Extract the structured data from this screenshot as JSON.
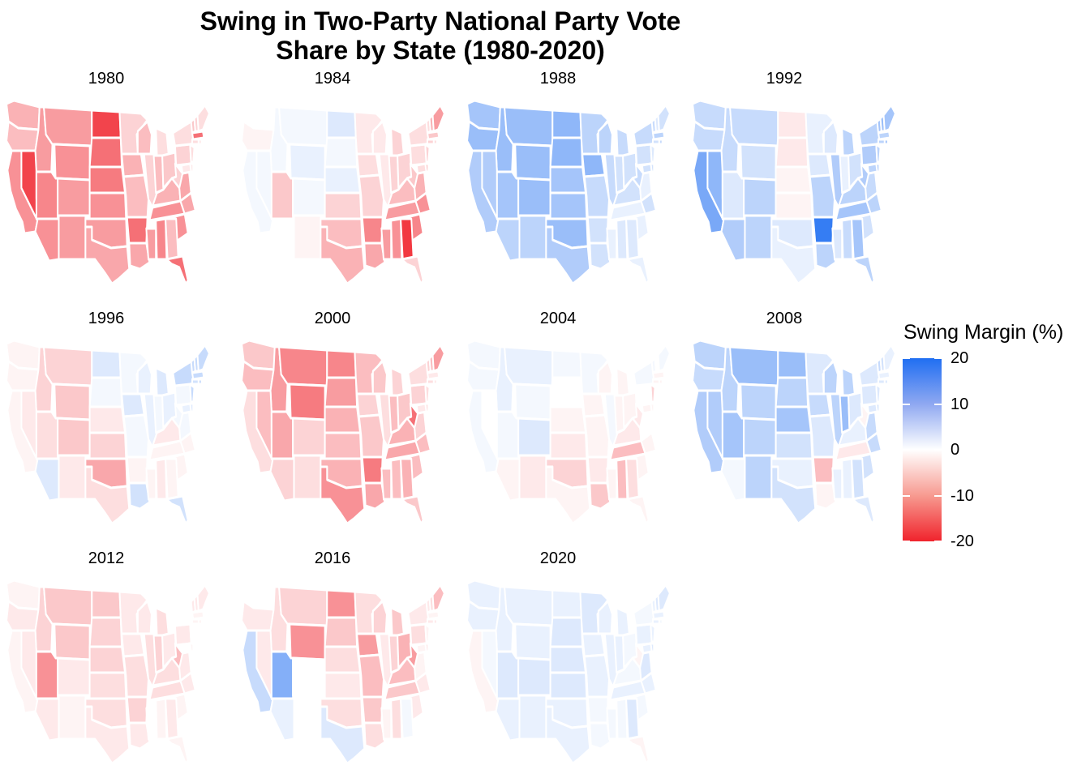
{
  "chart_data": {
    "type": "choropleth-small-multiples",
    "title": "Swing in Two-Party National Party Vote Share by State (1980-2020)",
    "title_lines": [
      "Swing in Two-Party National Party Vote",
      "Share by State (1980-2020)"
    ],
    "legend": {
      "title": "Swing Margin (%)",
      "ticks": [
        "20",
        "10",
        "0",
        "-10",
        "-20"
      ],
      "tick_values": [
        20,
        10,
        0,
        -10,
        -20
      ],
      "range": [
        -20,
        20
      ],
      "position": "right",
      "colors": {
        "high": "#1f6ef2",
        "mid": "#ffffff",
        "low": "#f0232c"
      }
    },
    "states": [
      "WA",
      "OR",
      "CA",
      "ID",
      "NV",
      "MT",
      "WY",
      "UT",
      "AZ",
      "CO",
      "NM",
      "ND",
      "SD",
      "NE",
      "KS",
      "OK",
      "TX",
      "MN",
      "IA",
      "MO",
      "AR",
      "LA",
      "WI",
      "IL",
      "MS",
      "MI",
      "IN",
      "KY",
      "TN",
      "AL",
      "OH",
      "WV",
      "VA",
      "NC",
      "SC",
      "GA",
      "FL",
      "PA",
      "NY",
      "VT",
      "NH",
      "ME",
      "MA",
      "CT",
      "RI",
      "NJ",
      "DE",
      "MD"
    ],
    "panels": [
      {
        "year": "1980",
        "swing": {
          "WA": -7,
          "OR": -6,
          "CA": -10,
          "ID": -9,
          "NV": -17,
          "MT": -9,
          "WY": -10,
          "UT": -11,
          "AZ": -10,
          "CO": -9,
          "NM": -9,
          "ND": -17,
          "SD": -13,
          "NE": -12,
          "KS": -10,
          "OK": -9,
          "TX": -8,
          "MN": -4,
          "IA": -7,
          "MO": -6,
          "AR": -13,
          "LA": -8,
          "WI": -6,
          "IL": -4,
          "MS": -9,
          "MI": -3,
          "IN": -6,
          "KY": -7,
          "TN": -10,
          "AL": -11,
          "OH": -5,
          "WV": -4,
          "VA": -8,
          "NC": -8,
          "SC": -10,
          "GA": -6,
          "FL": -13,
          "PA": -4,
          "NY": -3,
          "VT": -5,
          "NH": -4,
          "ME": -3,
          "MA": -13,
          "CT": -3,
          "RI": -2,
          "NJ": -3,
          "DE": -2,
          "MD": -2
        }
      },
      {
        "year": "1984",
        "swing": {
          "WA": 0,
          "OR": -1,
          "CA": 1,
          "ID": 1,
          "NV": 1,
          "MT": 1,
          "WY": 2,
          "UT": -5,
          "AZ": 0,
          "CO": 1,
          "NM": -1,
          "ND": 3,
          "SD": 1,
          "NE": 2,
          "KS": -4,
          "OK": -6,
          "TX": -7,
          "MN": -2,
          "IA": -3,
          "MO": -4,
          "AR": -11,
          "LA": -8,
          "WI": -2,
          "IL": -2,
          "MS": -9,
          "MI": -4,
          "IN": -4,
          "KY": -6,
          "TN": -9,
          "AL": -10,
          "OH": -4,
          "WV": -5,
          "VA": -7,
          "NC": -10,
          "SC": -11,
          "GA": -18,
          "FL": -4,
          "PA": -3,
          "NY": -3,
          "VT": -3,
          "NH": -7,
          "ME": -9,
          "MA": -5,
          "CT": -4,
          "RI": -3,
          "NJ": -4,
          "DE": -5,
          "MD": -3
        }
      },
      {
        "year": "1988",
        "swing": {
          "WA": 8,
          "OR": 9,
          "CA": 7,
          "ID": 9,
          "NV": 7,
          "MT": 9,
          "WY": 9,
          "UT": 8,
          "AZ": 6,
          "CO": 9,
          "NM": 6,
          "ND": 10,
          "SD": 10,
          "NE": 8,
          "KS": 8,
          "OK": 9,
          "TX": 7,
          "MN": 6,
          "IA": 10,
          "MO": 5,
          "AR": 4,
          "LA": 4,
          "WI": 6,
          "IL": 5,
          "MS": 2,
          "MI": 5,
          "IN": 4,
          "KY": 4,
          "TN": 2,
          "AL": 3,
          "OH": 4,
          "WV": 5,
          "VA": 2,
          "NC": 4,
          "SC": 2,
          "GA": 3,
          "FL": 2,
          "PA": 4,
          "NY": 5,
          "VT": 5,
          "NH": 3,
          "ME": 4,
          "MA": 6,
          "CT": 4,
          "RI": 5,
          "NJ": 3,
          "DE": 4,
          "MD": 4
        }
      },
      {
        "year": "1992",
        "swing": {
          "WA": 5,
          "OR": 5,
          "CA": 12,
          "ID": 5,
          "NV": 10,
          "MT": 5,
          "WY": 4,
          "UT": 3,
          "AZ": 7,
          "CO": 6,
          "NM": 6,
          "ND": -2,
          "SD": -2,
          "NE": -1,
          "KS": -1,
          "OK": 3,
          "TX": 2,
          "MN": 2,
          "IA": 3,
          "MO": 6,
          "AR": 18,
          "LA": 6,
          "WI": 3,
          "IL": 7,
          "MS": 3,
          "MI": 6,
          "IN": 2,
          "KY": 6,
          "TN": 8,
          "AL": 5,
          "OH": 4,
          "WV": 7,
          "VA": 5,
          "NC": 6,
          "SC": 4,
          "GA": 8,
          "FL": 6,
          "PA": 7,
          "NY": 6,
          "VT": 8,
          "NH": 9,
          "ME": 8,
          "MA": 6,
          "CT": 6,
          "RI": 8,
          "NJ": 6,
          "DE": 7,
          "MD": 6
        }
      },
      {
        "year": "1996",
        "swing": {
          "WA": -1,
          "OR": -1,
          "CA": -1,
          "ID": -4,
          "NV": -2,
          "MT": -4,
          "WY": -5,
          "UT": -3,
          "AZ": 3,
          "CO": -5,
          "NM": -2,
          "ND": 3,
          "SD": 1,
          "NE": -2,
          "KS": -4,
          "OK": -8,
          "TX": -3,
          "MN": 1,
          "IA": 3,
          "MO": 1,
          "AR": -1,
          "LA": 4,
          "WI": 2,
          "IL": 2,
          "MS": -1,
          "MI": 3,
          "IN": 1,
          "KY": -2,
          "TN": -1,
          "AL": -2,
          "OH": 2,
          "WV": 1,
          "VA": 1,
          "NC": -1,
          "SC": -1,
          "GA": -1,
          "FL": 4,
          "PA": 1,
          "NY": 5,
          "VT": 5,
          "NH": 5,
          "ME": 5,
          "MA": 5,
          "CT": 4,
          "RI": 5,
          "NJ": 5,
          "DE": 3,
          "MD": 2
        }
      },
      {
        "year": "2000",
        "swing": {
          "WA": -5,
          "OR": -6,
          "CA": -3,
          "ID": -9,
          "NV": -6,
          "MT": -11,
          "WY": -12,
          "UT": -8,
          "AZ": -4,
          "CO": -4,
          "NM": -3,
          "ND": -11,
          "SD": -9,
          "NE": -7,
          "KS": -6,
          "OK": -7,
          "TX": -10,
          "MN": -6,
          "IA": -4,
          "MO": -5,
          "AR": -12,
          "LA": -8,
          "WI": -5,
          "IL": -3,
          "MS": -6,
          "MI": -4,
          "IN": -6,
          "KY": -7,
          "TN": -8,
          "AL": -6,
          "OH": -5,
          "WV": -13,
          "VA": -4,
          "NC": -6,
          "SC": -6,
          "GA": -7,
          "FL": -5,
          "PA": -4,
          "NY": -3,
          "VT": -4,
          "NH": -6,
          "ME": -9,
          "MA": -2,
          "CT": -3,
          "RI": -2,
          "NJ": -3,
          "DE": -3,
          "MD": -2
        }
      },
      {
        "year": "2004",
        "swing": {
          "WA": 1,
          "OR": 1,
          "CA": 1,
          "ID": 2,
          "NV": 0,
          "MT": 2,
          "WY": 1,
          "UT": 1,
          "AZ": -1,
          "CO": 3,
          "NM": -2,
          "ND": 1,
          "SD": 0,
          "NE": -1,
          "KS": -2,
          "OK": -4,
          "TX": -1,
          "MN": 1,
          "IA": -1,
          "MO": -1,
          "AR": -2,
          "LA": -5,
          "WI": -1,
          "IL": 1,
          "MS": -1,
          "MI": -1,
          "IN": -1,
          "KY": -2,
          "TN": -6,
          "AL": -6,
          "OH": -1,
          "WV": -2,
          "VA": 0,
          "NC": -1,
          "SC": -1,
          "GA": -3,
          "FL": -1,
          "PA": 0,
          "NY": 1,
          "VT": 1,
          "NH": 0,
          "ME": 1,
          "MA": -1,
          "CT": -1,
          "RI": -1,
          "NJ": -4,
          "DE": -1,
          "MD": -1
        }
      },
      {
        "year": "2008",
        "swing": {
          "WA": 6,
          "OR": 5,
          "CA": 7,
          "ID": 6,
          "NV": 7,
          "MT": 9,
          "WY": 6,
          "UT": 8,
          "AZ": 1,
          "CO": 6,
          "NM": 6,
          "ND": 9,
          "SD": 6,
          "NE": 8,
          "KS": 4,
          "OK": 2,
          "TX": 4,
          "MN": 3,
          "IA": 5,
          "MO": 3,
          "AR": -6,
          "LA": -1,
          "WI": 6,
          "IL": 6,
          "MS": 2,
          "MI": 6,
          "IN": 9,
          "KY": 2,
          "TN": -2,
          "AL": 2,
          "OH": 3,
          "WV": -1,
          "VA": 5,
          "NC": 5,
          "SC": 4,
          "GA": 4,
          "FL": 3,
          "PA": 3,
          "NY": 3,
          "VT": 5,
          "NH": 4,
          "ME": 2,
          "MA": 2,
          "CT": 3,
          "RI": 3,
          "NJ": 3,
          "DE": 4,
          "MD": 3
        }
      },
      {
        "year": "2012",
        "swing": {
          "WA": -1,
          "OR": -2,
          "CA": -1,
          "ID": -4,
          "NV": -2,
          "MT": -5,
          "WY": -5,
          "UT": -10,
          "AZ": -2,
          "CO": -2,
          "NM": -1,
          "ND": -5,
          "SD": -4,
          "NE": -4,
          "KS": -3,
          "OK": -3,
          "TX": -2,
          "MN": -2,
          "IA": -2,
          "MO": -3,
          "AR": -4,
          "LA": -2,
          "WI": -2,
          "IL": -3,
          "MS": 0,
          "MI": -3,
          "IN": -4,
          "KY": -3,
          "TN": -3,
          "AL": -1,
          "OH": -2,
          "WV": -6,
          "VA": -2,
          "NC": -2,
          "SC": -1,
          "GA": -2,
          "FL": -1,
          "PA": -2,
          "NY": 0,
          "VT": -2,
          "NH": -2,
          "ME": -2,
          "MA": -1,
          "CT": -1,
          "RI": -1,
          "NJ": 0,
          "DE": -1,
          "MD": 0
        }
      },
      {
        "year": "2016",
        "swing": {
          "WA": 0,
          "OR": -2,
          "CA": 5,
          "ID": -3,
          "NV": -2,
          "MT": -4,
          "WY": -10,
          "UT": 11,
          "AZ": 2,
          "CO": 0,
          "NM": 0,
          "ND": -10,
          "SD": -5,
          "NE": -3,
          "KS": -2,
          "OK": -3,
          "TX": 3,
          "MN": -3,
          "IA": -9,
          "MO": -6,
          "AR": -5,
          "LA": -3,
          "WI": -4,
          "IL": -2,
          "MS": -1,
          "MI": -5,
          "IN": -4,
          "KY": -6,
          "TN": -5,
          "AL": -3,
          "OH": -7,
          "WV": -9,
          "VA": -1,
          "NC": -2,
          "SC": -2,
          "GA": 1,
          "FL": 0,
          "PA": -3,
          "NY": -2,
          "VT": -2,
          "NH": -3,
          "ME": -6,
          "MA": -1,
          "CT": -2,
          "RI": -2,
          "NJ": -1,
          "DE": -2,
          "MD": -1
        }
      },
      {
        "year": "2020",
        "swing": {
          "WA": 2,
          "OR": 2,
          "CA": -1,
          "ID": 2,
          "NV": 1,
          "MT": 2,
          "WY": 2,
          "UT": 3,
          "AZ": 2,
          "CO": 3,
          "NM": 2,
          "ND": 2,
          "SD": 3,
          "NE": 3,
          "KS": 3,
          "OK": 2,
          "TX": 2,
          "MN": 3,
          "IA": 2,
          "MO": 2,
          "AR": 1,
          "LA": 1,
          "WI": 2,
          "IL": 2,
          "MS": 1,
          "MI": 2,
          "IN": 2,
          "KY": 1,
          "TN": 2,
          "AL": 1,
          "OH": 1,
          "WV": -1,
          "VA": 3,
          "NC": 2,
          "SC": 1,
          "GA": 3,
          "FL": -1,
          "PA": 2,
          "NY": 1,
          "VT": 2,
          "NH": 3,
          "ME": 3,
          "MA": 2,
          "CT": 2,
          "RI": 1,
          "NJ": 2,
          "DE": 3,
          "MD": 2
        }
      }
    ]
  }
}
